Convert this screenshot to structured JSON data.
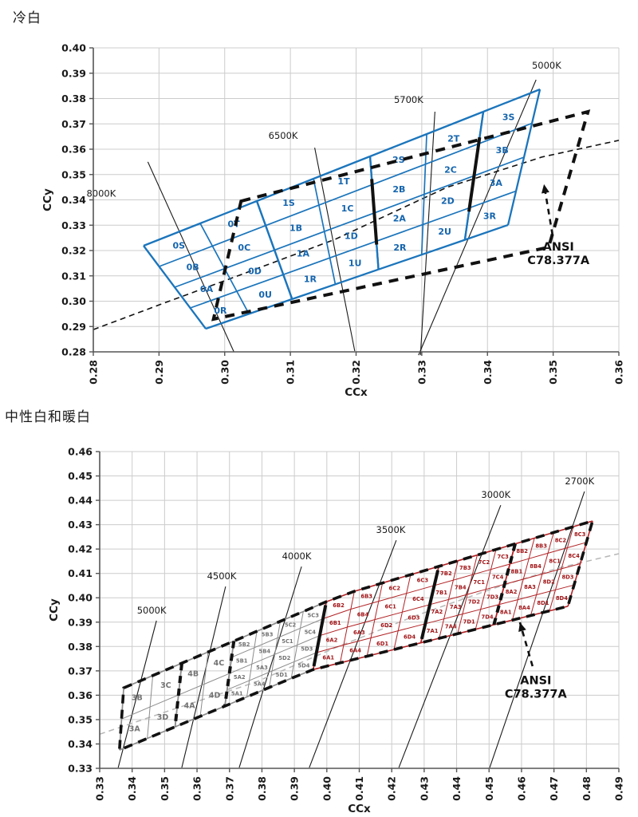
{
  "panels": [
    {
      "title": "冷白"
    },
    {
      "title": "中性白和暖白"
    }
  ],
  "colors": {
    "blue": "#1b75bc",
    "blue_label": "#1565ae",
    "gray": "#8c8c8c",
    "gray_label": "#737373",
    "red": "#b22225",
    "red_label": "#a31518",
    "annotation": "#111111",
    "grid": "#cccccc",
    "axis": "#555555",
    "tick_text": "#1a1a1a",
    "locus_black": "#111111",
    "locus_gray": "#b7b7b7"
  },
  "chart_data": [
    {
      "type": "scatter",
      "subtype": "chromaticity-bin-diagram",
      "title": "冷白",
      "x_axis": {
        "label": "CCx",
        "min": 0.28,
        "max": 0.36,
        "step": 0.01,
        "ticks": [
          "0.28",
          "0.29",
          "0.30",
          "0.31",
          "0.32",
          "0.33",
          "0.34",
          "0.35",
          "0.36"
        ]
      },
      "y_axis": {
        "label": "CCy",
        "min": 0.28,
        "max": 0.4,
        "step": 0.01,
        "ticks": [
          "0.28",
          "0.29",
          "0.30",
          "0.31",
          "0.32",
          "0.33",
          "0.34",
          "0.35",
          "0.36",
          "0.37",
          "0.38",
          "0.39",
          "0.40"
        ]
      },
      "cct_leaders": [
        {
          "label": "8000K",
          "label_pos": [
            0.2812,
            0.3425
          ],
          "line": [
            [
              0.2883,
              0.355
            ],
            [
              0.3014,
              0.28
            ]
          ]
        },
        {
          "label": "6500K",
          "label_pos": [
            0.3089,
            0.3654
          ],
          "line": [
            [
              0.3137,
              0.3606
            ],
            [
              0.3198,
              0.2803
            ]
          ]
        },
        {
          "label": "5700K",
          "label_pos": [
            0.328,
            0.3795
          ],
          "line": [
            [
              0.332,
              0.3748
            ],
            [
              0.3298,
              0.2787
            ]
          ]
        },
        {
          "label": "5000K",
          "label_pos": [
            0.349,
            0.3931
          ],
          "line": [
            [
              0.3474,
              0.3874
            ],
            [
              0.3295,
              0.2787
            ]
          ]
        }
      ],
      "planckian_locus": {
        "color_key": "locus_black",
        "width": 1.6,
        "dash": "7 5",
        "points": [
          [
            0.28,
            0.2888
          ],
          [
            0.2901,
            0.2986
          ],
          [
            0.3022,
            0.3102
          ],
          [
            0.3168,
            0.3244
          ],
          [
            0.3338,
            0.3449
          ],
          [
            0.3483,
            0.3569
          ],
          [
            0.36,
            0.3635
          ]
        ]
      },
      "bin_grid": {
        "env_top": [
          [
            0.28765,
            0.32189
          ],
          [
            0.34799,
            0.38362
          ]
        ],
        "env_bottom": [
          [
            0.29712,
            0.28913
          ],
          [
            0.34313,
            0.33007
          ]
        ],
        "boundaries": [
          0,
          0.1429,
          0.2857,
          0.4286,
          0.5714,
          0.7143,
          0.8571,
          1
        ],
        "sections": [
          {
            "name": "section-0",
            "cols": [
              0,
              2
            ],
            "row_fracs": [
              0,
              0.25,
              0.5,
              0.75,
              1
            ],
            "line_key": "blue",
            "label_key": "blue_label",
            "label_size": 11,
            "labels": [
              [
                "0S",
                "0T"
              ],
              [
                "0B",
                "0C"
              ],
              [
                "0A",
                "0D"
              ],
              [
                "0R",
                "0U"
              ]
            ]
          },
          {
            "name": "section-1",
            "cols": [
              2,
              4
            ],
            "row_fracs": [
              0,
              0.25,
              0.5,
              0.75,
              1
            ],
            "line_key": "blue",
            "label_key": "blue_label",
            "label_size": 11,
            "labels": [
              [
                "1S",
                "1T"
              ],
              [
                "1B",
                "1C"
              ],
              [
                "1A",
                "1D"
              ],
              [
                "1R",
                "1U"
              ]
            ]
          },
          {
            "name": "section-2",
            "cols": [
              4,
              6
            ],
            "row_fracs": [
              0,
              0.25,
              0.5,
              0.75,
              1
            ],
            "line_key": "blue",
            "label_key": "blue_label",
            "label_size": 11,
            "labels": [
              [
                "2S",
                "2T"
              ],
              [
                "2B",
                "2C"
              ],
              [
                "2A",
                "2D"
              ],
              [
                "2R",
                "2U"
              ]
            ]
          },
          {
            "name": "section-3",
            "cols": [
              6,
              7
            ],
            "row_fracs": [
              0,
              0.25,
              0.5,
              0.75,
              1
            ],
            "line_key": "blue",
            "label_key": "blue_label",
            "label_size": 11,
            "labels": [
              [
                "3S"
              ],
              [
                "3B"
              ],
              [
                "3A"
              ],
              [
                "3R"
              ]
            ]
          }
        ]
      },
      "heavy_segments": [
        {
          "t": 0.5714,
          "r0": 0.2,
          "r1": 0.78,
          "dashed": false
        },
        {
          "t": 0.8571,
          "r0": 0.2,
          "r1": 0.78,
          "dashed": false
        }
      ],
      "ansi": {
        "outline": "quad",
        "quad_points": [
          [
            0.3025,
            0.3395
          ],
          [
            0.3553,
            0.3748
          ],
          [
            0.3493,
            0.3213
          ],
          [
            0.2983,
            0.2929
          ]
        ],
        "label_lines": [
          "ANSI",
          "C78.377A"
        ],
        "label_pos": [
          0.3508,
          0.32
        ],
        "arrow": {
          "from": [
            0.3499,
            0.3262
          ],
          "to": [
            0.3486,
            0.3462
          ]
        }
      }
    },
    {
      "type": "scatter",
      "subtype": "chromaticity-bin-diagram",
      "title": "中性白和暖白",
      "x_axis": {
        "label": "CCx",
        "min": 0.33,
        "max": 0.49,
        "step": 0.01,
        "ticks": [
          "0.33",
          "0.34",
          "0.35",
          "0.36",
          "0.37",
          "0.38",
          "0.39",
          "0.40",
          "0.41",
          "0.42",
          "0.43",
          "0.44",
          "0.45",
          "0.46",
          "0.47",
          "0.48",
          "0.49"
        ]
      },
      "y_axis": {
        "label": "CCy",
        "min": 0.33,
        "max": 0.46,
        "step": 0.01,
        "ticks": [
          "0.33",
          "0.34",
          "0.35",
          "0.36",
          "0.37",
          "0.38",
          "0.39",
          "0.40",
          "0.41",
          "0.42",
          "0.43",
          "0.44",
          "0.45",
          "0.46"
        ]
      },
      "cct_leaders": [
        {
          "label": "5000K",
          "label_pos": [
            0.346,
            0.3948
          ],
          "line": [
            [
              0.3475,
              0.3906
            ],
            [
              0.3357,
              0.3303
            ]
          ]
        },
        {
          "label": "4500K",
          "label_pos": [
            0.3676,
            0.4089
          ],
          "line": [
            [
              0.3688,
              0.4046
            ],
            [
              0.3553,
              0.3303
            ]
          ]
        },
        {
          "label": "4000K",
          "label_pos": [
            0.3907,
            0.4171
          ],
          "line": [
            [
              0.3922,
              0.4128
            ],
            [
              0.373,
              0.3303
            ]
          ]
        },
        {
          "label": "3500K",
          "label_pos": [
            0.4197,
            0.4279
          ],
          "line": [
            [
              0.4214,
              0.4236
            ],
            [
              0.3946,
              0.3303
            ]
          ]
        },
        {
          "label": "3000K",
          "label_pos": [
            0.4521,
            0.4423
          ],
          "line": [
            [
              0.4536,
              0.438
            ],
            [
              0.4222,
              0.3303
            ]
          ]
        },
        {
          "label": "2700K",
          "label_pos": [
            0.4779,
            0.4479
          ],
          "line": [
            [
              0.4794,
              0.4436
            ],
            [
              0.4502,
              0.3303
            ]
          ]
        }
      ],
      "planckian_locus": {
        "color_key": "locus_gray",
        "width": 1.5,
        "dash": "7 5",
        "points": [
          [
            0.33,
            0.344
          ],
          [
            0.3533,
            0.3545
          ],
          [
            0.3779,
            0.3653
          ],
          [
            0.4025,
            0.3794
          ],
          [
            0.4271,
            0.3925
          ],
          [
            0.4517,
            0.404
          ],
          [
            0.4713,
            0.4122
          ],
          [
            0.49,
            0.4181
          ]
        ]
      },
      "bin_grid": {
        "env_top": [
          [
            0.3374,
            0.363
          ],
          [
            0.405,
            0.4013
          ],
          [
            0.4819,
            0.4315
          ]
        ],
        "env_bottom": [
          [
            0.3361,
            0.3375
          ],
          [
            0.3951,
            0.3703
          ],
          [
            0.4743,
            0.3965
          ]
        ],
        "boundaries": [
          0,
          0.062,
          0.124,
          0.18,
          0.235,
          0.284,
          0.334,
          0.383,
          0.432,
          0.492,
          0.552,
          0.612,
          0.672,
          0.713,
          0.754,
          0.794,
          0.835,
          0.876,
          0.917,
          0.959,
          1
        ],
        "sections": [
          {
            "name": "section-3",
            "cols": [
              0,
              2
            ],
            "row_fracs": [
              0,
              0.5,
              1
            ],
            "line_key": "gray",
            "label_key": "gray_label",
            "label_size": 9.5,
            "labels": [
              [
                "3B",
                "3C"
              ],
              [
                "3A",
                "3D"
              ]
            ]
          },
          {
            "name": "section-4",
            "cols": [
              2,
              4
            ],
            "row_fracs": [
              0,
              0.5,
              1
            ],
            "line_key": "gray",
            "label_key": "gray_label",
            "label_size": 9.5,
            "labels": [
              [
                "4B",
                "4C"
              ],
              [
                "4A",
                "4D"
              ]
            ]
          },
          {
            "name": "section-5",
            "cols": [
              4,
              8
            ],
            "row_fracs": [
              0,
              0.25,
              0.5,
              0.75,
              1
            ],
            "line_key": "gray",
            "label_key": "gray_label",
            "label_size": 6.8,
            "labels": [
              [
                "5B2",
                "5B3",
                "5C2",
                "5C3"
              ],
              [
                "5B1",
                "5B4",
                "5C1",
                "5C4"
              ],
              [
                "5A2",
                "5A3",
                "5D2",
                "5D3"
              ],
              [
                "5A1",
                "5A4",
                "5D1",
                "5D4"
              ]
            ]
          },
          {
            "name": "section-6",
            "cols": [
              8,
              12
            ],
            "row_fracs": [
              0,
              0.25,
              0.5,
              0.75,
              1
            ],
            "line_key": "red",
            "label_key": "red_label",
            "label_size": 6.8,
            "labels": [
              [
                "6B2",
                "6B3",
                "6C2",
                "6C3"
              ],
              [
                "6B1",
                "6B4",
                "6C1",
                "6C4"
              ],
              [
                "6A2",
                "6A3",
                "6D2",
                "6D3"
              ],
              [
                "6A1",
                "6A4",
                "6D1",
                "6D4"
              ]
            ]
          },
          {
            "name": "section-7",
            "cols": [
              12,
              16
            ],
            "row_fracs": [
              0,
              0.25,
              0.5,
              0.75,
              1
            ],
            "line_key": "red",
            "label_key": "red_label",
            "label_size": 6.8,
            "labels": [
              [
                "7B2",
                "7B3",
                "7C2",
                "7C3"
              ],
              [
                "7B1",
                "7B4",
                "7C1",
                "7C4"
              ],
              [
                "7A2",
                "7A3",
                "7D2",
                "7D3"
              ],
              [
                "7A1",
                "7A4",
                "7D1",
                "7D4"
              ]
            ]
          },
          {
            "name": "section-8",
            "cols": [
              16,
              20
            ],
            "row_fracs": [
              0,
              0.25,
              0.5,
              0.75,
              1
            ],
            "line_key": "red",
            "label_key": "red_label",
            "label_size": 6.8,
            "labels": [
              [
                "8B2",
                "8B3",
                "8C2",
                "8C3"
              ],
              [
                "8B1",
                "8B4",
                "8C1",
                "8C4"
              ],
              [
                "8A2",
                "8A3",
                "8D2",
                "8D3"
              ],
              [
                "8A1",
                "8A4",
                "8D1",
                "8D4"
              ]
            ]
          }
        ]
      },
      "heavy_segments": [
        {
          "t": 0.124,
          "r0": 0,
          "r1": 1,
          "dashed": true
        },
        {
          "t": 0.235,
          "r0": 0,
          "r1": 1,
          "dashed": true
        },
        {
          "t": 0.432,
          "r0": 0.05,
          "r1": 0.95,
          "dashed": false
        },
        {
          "t": 0.672,
          "r0": 0.05,
          "r1": 0.95,
          "dashed": false
        },
        {
          "t": 0.835,
          "r0": 0,
          "r1": 1,
          "dashed": true
        }
      ],
      "ansi": {
        "outline": "envelope",
        "label_lines": [
          "ANSI",
          "C78.377A"
        ],
        "label_pos": [
          0.4644,
          0.3646
        ],
        "arrow": {
          "from": [
            0.4634,
            0.3719
          ],
          "to": [
            0.4595,
            0.3899
          ]
        }
      }
    }
  ]
}
